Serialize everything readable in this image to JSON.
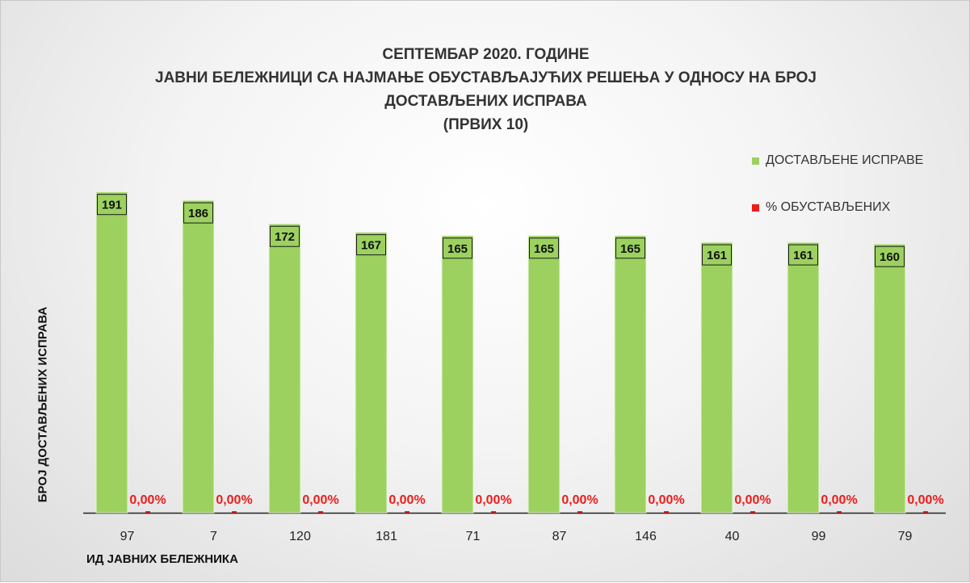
{
  "chart_data": {
    "type": "bar",
    "title_lines": [
      "СЕПТЕМБАР 2020. ГОДИНЕ",
      "ЈАВНИ БЕЛЕЖНИЦИ СА НАЈМАЊЕ ОБУСТАВЉАЈУЋИХ РЕШЕЊА У ОДНОСУ НА БРОЈ",
      "ДОСТАВЉЕНИХ ИСПРАВА",
      "(ПРВИХ 10)"
    ],
    "categories": [
      "97",
      "7",
      "120",
      "181",
      "71",
      "87",
      "146",
      "40",
      "99",
      "79"
    ],
    "series": [
      {
        "name": "ДОСТАВЉЕНЕ ИСПРАВЕ",
        "color": "#9cd15f",
        "values": [
          191,
          186,
          172,
          167,
          165,
          165,
          165,
          161,
          161,
          160
        ]
      },
      {
        "name": "% ОБУСТАВЉЕНИХ",
        "color": "#ee1c1c",
        "values": [
          0,
          0,
          0,
          0,
          0,
          0,
          0,
          0,
          0,
          0
        ],
        "labels": [
          "0,00%",
          "0,00%",
          "0,00%",
          "0,00%",
          "0,00%",
          "0,00%",
          "0,00%",
          "0,00%",
          "0,00%",
          "0,00%"
        ]
      }
    ],
    "xlabel": "ИД ЈАВНИХ БЕЛЕЖНИКА",
    "ylabel": "БРОЈ ДОСТАВЉЕНИХ ИСПРАВА",
    "ylim": [
      0,
      200
    ],
    "legend_position": "top-right",
    "grid": false
  }
}
